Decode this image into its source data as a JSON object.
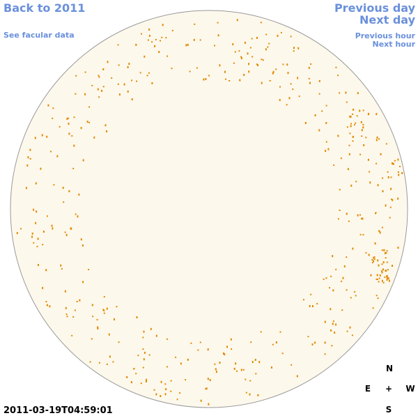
{
  "links": {
    "back": "Back to 2011",
    "facular_data": "See facular data",
    "previous_day": "Previous day",
    "next_day": "Next day",
    "previous_hour": "Previous hour",
    "next_hour": "Next hour"
  },
  "timestamp": "2011-03-19T04:59:01",
  "compass": {
    "north": "N",
    "east": "E",
    "center": "+",
    "west": "W",
    "south": "S"
  }
}
